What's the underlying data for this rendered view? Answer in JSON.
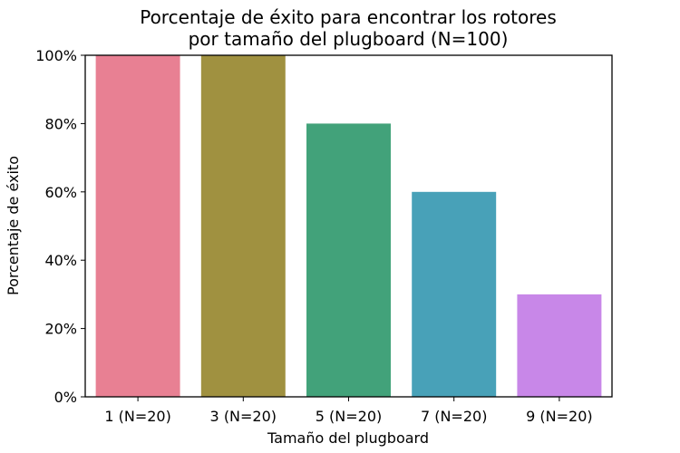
{
  "chart_data": {
    "type": "bar",
    "title": "Porcentaje de éxito para encontrar los rotores por tamaño del plugboard (N=100)",
    "title_lines": [
      "Porcentaje de éxito para encontrar los rotores",
      "por tamaño del plugboard (N=100)"
    ],
    "xlabel": "Tamaño del plugboard",
    "ylabel": "Porcentaje de éxito",
    "categories": [
      "1 (N=20)",
      "3 (N=20)",
      "5 (N=20)",
      "7 (N=20)",
      "9 (N=20)"
    ],
    "values": [
      100,
      100,
      80,
      60,
      30
    ],
    "colors": [
      "#e88093",
      "#a09140",
      "#42a27a",
      "#48a1b8",
      "#c887e8"
    ],
    "ylim": [
      0,
      100
    ],
    "yticks": [
      0,
      20,
      40,
      60,
      80,
      100
    ],
    "ytick_labels": [
      "0%",
      "20%",
      "40%",
      "60%",
      "80%",
      "100%"
    ],
    "grid": false,
    "legend": "none"
  }
}
